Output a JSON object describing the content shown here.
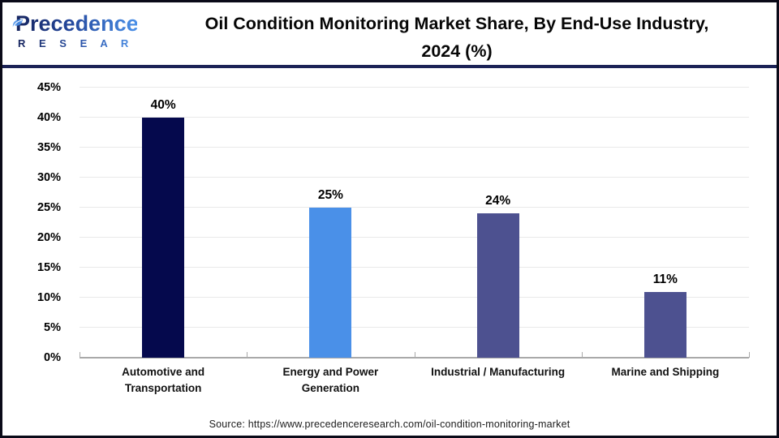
{
  "header": {
    "logo": {
      "wordmark": "Precedence",
      "subtitle": "R E S E A R C H"
    },
    "title_lines": [
      "Oil Condition Monitoring Market Share, By End-Use Industry,",
      "2024 (%)"
    ]
  },
  "chart_data": {
    "type": "bar",
    "title": "Oil Condition Monitoring Market Share, By End-Use Industry, 2024 (%)",
    "categories": [
      "Automotive and Transportation",
      "Energy and Power Generation",
      "Industrial / Manufacturing",
      "Marine and Shipping"
    ],
    "values": [
      40,
      25,
      24,
      11
    ],
    "value_labels": [
      "40%",
      "25%",
      "24%",
      "11%"
    ],
    "bar_colors": [
      "#05094d",
      "#4a90e8",
      "#4d5190",
      "#4d5190"
    ],
    "xlabel": "",
    "ylabel": "",
    "ylim": [
      0,
      45
    ],
    "ytick_step": 5,
    "yticks": [
      "0%",
      "5%",
      "10%",
      "15%",
      "20%",
      "25%",
      "30%",
      "35%",
      "40%",
      "45%"
    ],
    "grid": true,
    "legend": false,
    "axis_color": "#a9a9a9",
    "grid_color": "#e9e9e9"
  },
  "footer": {
    "source": "Source: https://www.precedenceresearch.com/oil-condition-monitoring-market"
  },
  "colors": {
    "header_separator": "#1b2256",
    "frame_border": "#0a0a18",
    "logo_dark": "#16245e",
    "logo_light": "#4a90e8",
    "title_text": "#060606"
  }
}
